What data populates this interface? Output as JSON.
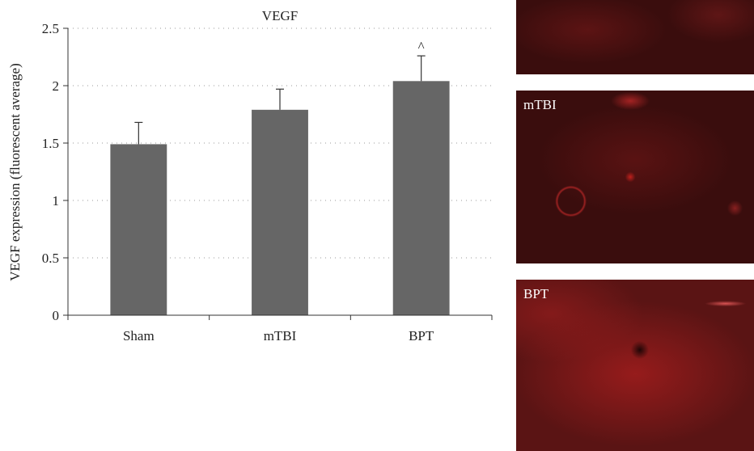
{
  "chart_data": {
    "type": "bar",
    "title": "VEGF",
    "xlabel": "",
    "ylabel": "VEGF expression (fluorescent average)",
    "categories": [
      "Sham",
      "mTBI",
      "BPT"
    ],
    "values": [
      1.49,
      1.79,
      2.04
    ],
    "error": [
      0.19,
      0.18,
      0.22
    ],
    "annotations": [
      "",
      "",
      "^"
    ],
    "ylim": [
      0,
      2.5
    ],
    "yticks": [
      0,
      0.5,
      1,
      1.5,
      2,
      2.5
    ],
    "ytick_labels": [
      "0",
      "0.5",
      "1",
      "1.5",
      "2",
      "2.5"
    ],
    "grid": true,
    "bar_color": "#666666"
  },
  "micrographs": {
    "mtbi_label": "mTBI",
    "bpt_label": "BPT",
    "base_color": "#3a0d0d",
    "glow_color": "#c0201c"
  }
}
